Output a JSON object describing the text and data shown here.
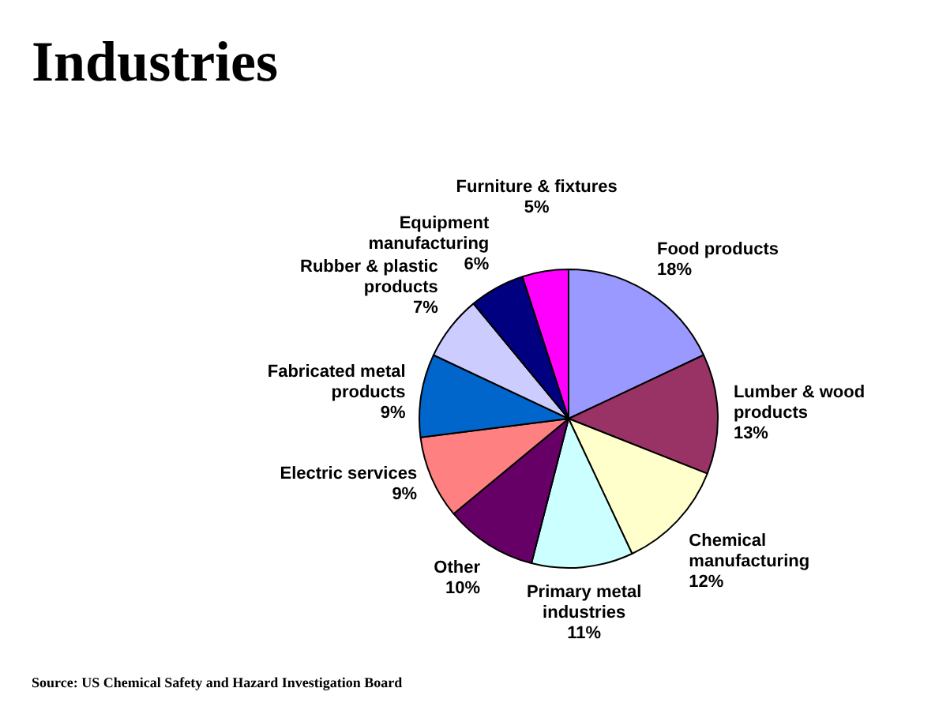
{
  "chart_data": {
    "type": "pie",
    "title": "Industries",
    "categories": [
      "Food products",
      "Lumber & wood products",
      "Chemical manufacturing",
      "Primary metal industries",
      "Other",
      "Electric services",
      "Fabricated metal products",
      "Rubber & plastic products",
      "Equipment manufacturing",
      "Furniture & fixtures"
    ],
    "values": [
      18,
      13,
      12,
      11,
      10,
      9,
      9,
      7,
      6,
      5
    ],
    "colors": [
      "#9999ff",
      "#993366",
      "#ffffcc",
      "#ccffff",
      "#660066",
      "#ff8080",
      "#0066cc",
      "#ccccff",
      "#000080",
      "#ff00ff"
    ],
    "value_labels": [
      "18%",
      "13%",
      "12%",
      "11%",
      "10%",
      "9%",
      "9%",
      "7%",
      "6%",
      "5%"
    ],
    "legend": false,
    "annotations": [
      "Source: US Chemical Safety and Hazard Investigation Board"
    ]
  }
}
